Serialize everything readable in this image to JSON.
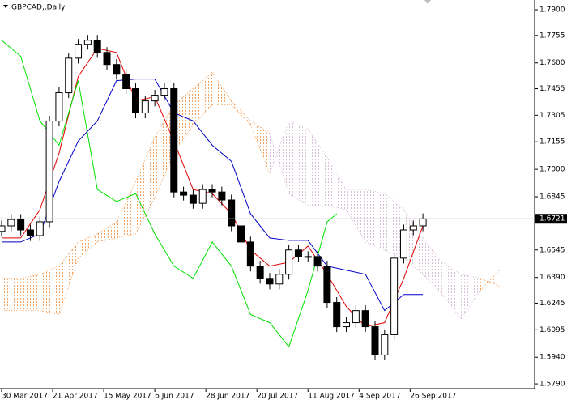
{
  "chart_data": {
    "type": "candlestick",
    "title": "GBPCAD,,Daily",
    "xlim": [
      0,
      167
    ],
    "ylim": [
      1.5763,
      1.7955
    ],
    "xticks": [
      {
        "value": 0,
        "label": "30 Mar 2017"
      },
      {
        "value": 16,
        "label": "21 Apr 2017"
      },
      {
        "value": 32,
        "label": "15 May 2017"
      },
      {
        "value": 48,
        "label": "6 Jun 2017"
      },
      {
        "value": 64,
        "label": "28 Jun 2017"
      },
      {
        "value": 80,
        "label": "20 Jul 2017"
      },
      {
        "value": 96,
        "label": "11 Aug 2017"
      },
      {
        "value": 112,
        "label": "4 Sep 2017"
      },
      {
        "value": 128,
        "label": "26 Sep 2017"
      }
    ],
    "yticks": [
      {
        "value": 1.79,
        "label": "1.7900"
      },
      1.7755,
      {
        "value": 1.76,
        "label": "1.7600"
      },
      1.7455,
      1.7305,
      1.7155,
      {
        "value": 1.7,
        "label": "1.7000"
      },
      1.6845,
      1.6545,
      {
        "value": 1.639,
        "label": "1.6390"
      },
      1.6245,
      1.6095,
      {
        "value": 1.594,
        "label": "1.5940"
      },
      {
        "value": 1.579,
        "label": "1.5790"
      }
    ],
    "last_price": 1.6721,
    "candles": {
      "x": [
        0,
        3,
        6,
        9,
        12,
        15,
        18,
        21,
        24,
        27,
        30,
        33,
        36,
        39,
        42,
        45,
        48,
        51,
        54,
        57,
        60,
        63,
        66,
        69,
        72,
        75,
        78,
        81,
        84,
        87,
        90,
        93,
        96,
        99,
        102,
        105,
        108,
        111,
        114,
        117,
        120,
        123,
        126,
        129,
        132
      ],
      "open": [
        1.665,
        1.6681,
        1.6717,
        1.6658,
        1.6626,
        1.6704,
        1.7272,
        1.7432,
        1.7627,
        1.7705,
        1.7728,
        1.7659,
        1.7591,
        1.7536,
        1.7455,
        1.7318,
        1.7386,
        1.7418,
        1.7455,
        1.6872,
        1.6854,
        1.6808,
        1.6886,
        1.6872,
        1.6827,
        1.6681,
        1.659,
        1.6454,
        1.6385,
        1.6353,
        1.6408,
        1.6545,
        1.6508,
        1.6508,
        1.6454,
        1.6249,
        1.6112,
        1.6135,
        1.6203,
        1.6112,
        1.5953,
        1.6067,
        1.6499,
        1.6658,
        1.6681
      ],
      "high": [
        1.6711,
        1.6747,
        1.6747,
        1.6688,
        1.6734,
        1.7302,
        1.7462,
        1.7657,
        1.7735,
        1.7758,
        1.7758,
        1.7689,
        1.7621,
        1.7566,
        1.7485,
        1.7416,
        1.7448,
        1.7485,
        1.7485,
        1.6902,
        1.6884,
        1.6916,
        1.6916,
        1.6902,
        1.6857,
        1.6711,
        1.662,
        1.6484,
        1.6415,
        1.6438,
        1.6575,
        1.6575,
        1.6538,
        1.6538,
        1.6484,
        1.6279,
        1.6165,
        1.6233,
        1.6233,
        1.6142,
        1.6097,
        1.6529,
        1.6688,
        1.6711,
        1.6751
      ],
      "low": [
        1.662,
        1.6651,
        1.6628,
        1.6596,
        1.6596,
        1.6674,
        1.7242,
        1.7402,
        1.7597,
        1.7675,
        1.7629,
        1.7561,
        1.7506,
        1.7425,
        1.7288,
        1.7288,
        1.7356,
        1.7388,
        1.6842,
        1.6824,
        1.6778,
        1.6778,
        1.6842,
        1.6797,
        1.6651,
        1.656,
        1.6424,
        1.6355,
        1.6323,
        1.6323,
        1.6378,
        1.6478,
        1.6478,
        1.6424,
        1.6219,
        1.6082,
        1.6082,
        1.6105,
        1.6082,
        1.5923,
        1.5923,
        1.6037,
        1.6469,
        1.6628,
        1.6651
      ],
      "close": [
        1.6681,
        1.6717,
        1.6658,
        1.6626,
        1.6704,
        1.7272,
        1.7432,
        1.7627,
        1.7705,
        1.7728,
        1.7659,
        1.7591,
        1.7536,
        1.7455,
        1.7318,
        1.7386,
        1.7418,
        1.7455,
        1.6872,
        1.6854,
        1.6808,
        1.6886,
        1.6872,
        1.6827,
        1.6681,
        1.659,
        1.6454,
        1.6385,
        1.6353,
        1.6408,
        1.6545,
        1.6508,
        1.6508,
        1.6454,
        1.6249,
        1.6112,
        1.6135,
        1.6203,
        1.6112,
        1.5953,
        1.6067,
        1.6499,
        1.6658,
        1.6681,
        1.6721
      ]
    },
    "lines": [
      {
        "color": "#e00000",
        "x": [
          0,
          6,
          12,
          18,
          24,
          30,
          36,
          42,
          48,
          54,
          60,
          66,
          72,
          78,
          84,
          90,
          96,
          102,
          108,
          114,
          120,
          126,
          132
        ],
        "values": [
          1.6613,
          1.6613,
          1.6772,
          1.7091,
          1.7523,
          1.7682,
          1.7659,
          1.7386,
          1.7409,
          1.7159,
          1.6886,
          1.6863,
          1.6749,
          1.6545,
          1.6454,
          1.6476,
          1.6567,
          1.6408,
          1.6226,
          1.6112,
          1.6135,
          1.6385,
          1.6681
        ]
      },
      {
        "color": "#0000c8",
        "x": [
          0,
          6,
          12,
          18,
          24,
          30,
          36,
          42,
          48,
          54,
          60,
          66,
          72,
          78,
          84,
          90,
          96,
          102,
          108,
          114,
          120,
          126,
          132
        ],
        "values": [
          1.659,
          1.659,
          1.6636,
          1.6931,
          1.7159,
          1.7273,
          1.75,
          1.7509,
          1.7509,
          1.7318,
          1.7273,
          1.7136,
          1.7045,
          1.6749,
          1.6613,
          1.6599,
          1.6599,
          1.6454,
          1.6431,
          1.6408,
          1.6203,
          1.6294,
          1.6294
        ]
      },
      {
        "color": "#00e000",
        "x": [
          0,
          6,
          12,
          18,
          24,
          30,
          36,
          42,
          48,
          54,
          60,
          66,
          72,
          78,
          84,
          90,
          96,
          102,
          105
        ],
        "values": [
          1.7728,
          1.7637,
          1.7273,
          1.7136,
          1.75,
          1.6886,
          1.6818,
          1.6863,
          1.6636,
          1.6454,
          1.6385,
          1.659,
          1.6454,
          1.6181,
          1.6135,
          1.5999,
          1.6317,
          1.6704,
          1.6749
        ]
      }
    ],
    "cloud": {
      "up_color": "#f4a460",
      "down_color": "#d8bfd8",
      "x": [
        0,
        6,
        12,
        18,
        24,
        30,
        36,
        42,
        48,
        54,
        60,
        66,
        72,
        78,
        84,
        90,
        96,
        102,
        108,
        114,
        120,
        126,
        132,
        138,
        144,
        150,
        156
      ],
      "span_a": [
        1.6385,
        1.6385,
        1.6408,
        1.6454,
        1.659,
        1.6636,
        1.6704,
        1.6931,
        1.7182,
        1.7364,
        1.7455,
        1.7546,
        1.7386,
        1.7273,
        1.7204,
        1.6863,
        1.6795,
        1.6795,
        1.6772,
        1.659,
        1.6545,
        1.6499,
        1.6408,
        1.6294,
        1.6158,
        1.6317,
        1.6431
      ],
      "span_b": [
        1.6203,
        1.6203,
        1.6203,
        1.6181,
        1.6499,
        1.659,
        1.6613,
        1.6636,
        1.684,
        1.7091,
        1.725,
        1.7364,
        1.7364,
        1.725,
        1.6977,
        1.7273,
        1.7227,
        1.7068,
        1.6886,
        1.6886,
        1.6863,
        1.6772,
        1.6613,
        1.6476,
        1.6408,
        1.6385,
        1.634
      ]
    }
  }
}
